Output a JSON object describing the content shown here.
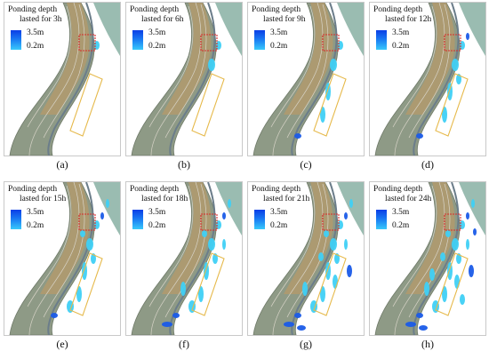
{
  "legend": {
    "title_line1": "Ponding depth",
    "max_label": "3.5m",
    "min_label": "0.2m",
    "color_max": "#0b3ee6",
    "color_min": "#39c9fb"
  },
  "panels": [
    {
      "caption": "(a)",
      "duration": "lasted for 3h",
      "hours": 3
    },
    {
      "caption": "(b)",
      "duration": "lasted for 6h",
      "hours": 6
    },
    {
      "caption": "(c)",
      "duration": "lasted for 9h",
      "hours": 9
    },
    {
      "caption": "(d)",
      "duration": "lasted for 12h",
      "hours": 12
    },
    {
      "caption": "(e)",
      "duration": "lasted for 15h",
      "hours": 15
    },
    {
      "caption": "(f)",
      "duration": "lasted for 18h",
      "hours": 18
    },
    {
      "caption": "(g)",
      "duration": "lasted for 21h",
      "hours": 21
    },
    {
      "caption": "(h)",
      "duration": "lasted for 24h",
      "hours": 24
    }
  ],
  "colors": {
    "highlight_red": "#d92b2b",
    "highlight_yellow": "#e6b94a",
    "water_light": "#3fd0f5",
    "water_deep": "#1a5be8"
  }
}
